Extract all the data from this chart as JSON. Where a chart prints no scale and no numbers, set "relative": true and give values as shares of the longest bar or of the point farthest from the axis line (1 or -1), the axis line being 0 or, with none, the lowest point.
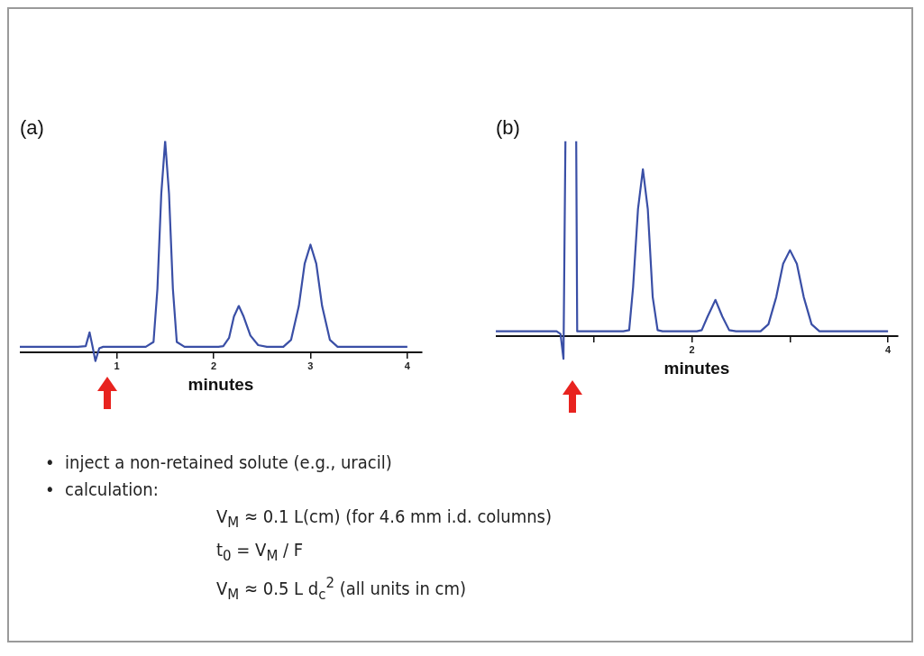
{
  "chart_data": [
    {
      "type": "line",
      "title": "(a)",
      "xlabel": "minutes",
      "relative": true,
      "xlim": [
        0,
        4.15
      ],
      "xticks": [
        1,
        2,
        3,
        4
      ],
      "series": [
        {
          "color": "#3a4fa6",
          "x": [
            0,
            0.6,
            0.68,
            0.72,
            0.75,
            0.78,
            0.82,
            0.86,
            1.3,
            1.38,
            1.42,
            1.46,
            1.5,
            1.54,
            1.58,
            1.62,
            1.7,
            2.05,
            2.1,
            2.16,
            2.21,
            2.26,
            2.31,
            2.38,
            2.46,
            2.55,
            2.72,
            2.8,
            2.88,
            2.94,
            3.0,
            3.06,
            3.12,
            3.2,
            3.28,
            4.0
          ],
          "values": [
            0.027,
            0.027,
            0.03,
            0.095,
            0.03,
            -0.04,
            0.02,
            0.027,
            0.027,
            0.05,
            0.3,
            0.75,
            1,
            0.75,
            0.3,
            0.05,
            0.027,
            0.027,
            0.03,
            0.07,
            0.17,
            0.22,
            0.17,
            0.08,
            0.035,
            0.027,
            0.027,
            0.06,
            0.22,
            0.42,
            0.51,
            0.42,
            0.22,
            0.06,
            0.027,
            0.027
          ]
        }
      ]
    },
    {
      "type": "line",
      "title": "(b)",
      "xlabel": "minutes",
      "relative": true,
      "xlim": [
        0,
        4.1
      ],
      "xticks": [
        {
          "value": 1,
          "label": null
        },
        2,
        {
          "value": 3,
          "label": null
        },
        4
      ],
      "series": [
        {
          "color": "#3a4fa6",
          "x": [
            0,
            0.62,
            0.66,
            0.69,
            0.71,
            0.72,
            0.81,
            0.82,
            0.83,
            1.3,
            1.36,
            1.4,
            1.45,
            1.5,
            1.55,
            1.6,
            1.65,
            1.7,
            2.05,
            2.1,
            2.16,
            2.24,
            2.31,
            2.38,
            2.45,
            2.7,
            2.78,
            2.86,
            2.93,
            3.0,
            3.07,
            3.14,
            3.22,
            3.3,
            4.0
          ],
          "values": [
            0.024,
            0.024,
            0.01,
            -0.117,
            1,
            null,
            null,
            1,
            0.024,
            0.024,
            0.03,
            0.25,
            0.65,
            0.855,
            0.65,
            0.2,
            0.03,
            0.024,
            0.024,
            0.03,
            0.1,
            0.185,
            0.1,
            0.03,
            0.024,
            0.024,
            0.06,
            0.2,
            0.37,
            0.44,
            0.37,
            0.2,
            0.06,
            0.024,
            0.024
          ]
        }
      ]
    },
    {
      "type": "other",
      "annotations": [
        "•  inject a non-retained solute (e.g., uracil)",
        "•  calculation:",
        "V$_{M}$ ≈ 0.1 L(cm) (for 4.6 mm i.d. columns)",
        "t$_{0}$ = V$_{M}$ / F",
        "V$_{M}$ ≈ 0.5 L d$_{c}$$^{2}$ (all units in cm)"
      ]
    }
  ]
}
